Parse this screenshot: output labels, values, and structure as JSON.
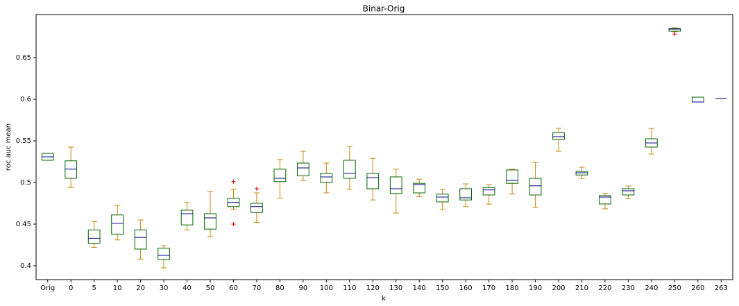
{
  "chart_data": {
    "type": "box",
    "title": "Binar-Orig",
    "x_label": "k",
    "y_label": "roc auc mean",
    "categories": [
      "Orig",
      "0",
      "5",
      "10",
      "20",
      "30",
      "40",
      "50",
      "60",
      "70",
      "80",
      "90",
      "100",
      "110",
      "120",
      "130",
      "140",
      "150",
      "160",
      "170",
      "180",
      "190",
      "200",
      "210",
      "220",
      "230",
      "240",
      "250",
      "260",
      "263"
    ],
    "boxes": [
      {
        "low": 0.5267,
        "q1": 0.5267,
        "median": 0.5308,
        "q3": 0.535,
        "high": 0.535
      },
      {
        "low": 0.494,
        "q1": 0.505,
        "median": 0.516,
        "q3": 0.526,
        "high": 0.5425
      },
      {
        "low": 0.422,
        "q1": 0.427,
        "median": 0.433,
        "q3": 0.443,
        "high": 0.453
      },
      {
        "low": 0.431,
        "q1": 0.438,
        "median": 0.451,
        "q3": 0.461,
        "high": 0.4725
      },
      {
        "low": 0.408,
        "q1": 0.42,
        "median": 0.434,
        "q3": 0.443,
        "high": 0.455
      },
      {
        "low": 0.3975,
        "q1": 0.4075,
        "median": 0.4125,
        "q3": 0.421,
        "high": 0.424
      },
      {
        "low": 0.443,
        "q1": 0.449,
        "median": 0.4625,
        "q3": 0.4667,
        "high": 0.476
      },
      {
        "low": 0.435,
        "q1": 0.444,
        "median": 0.4575,
        "q3": 0.4625,
        "high": 0.489
      },
      {
        "low": 0.468,
        "q1": 0.471,
        "median": 0.476,
        "q3": 0.481,
        "high": 0.492,
        "outliers": [
          0.501,
          0.45
        ]
      },
      {
        "low": 0.452,
        "q1": 0.464,
        "median": 0.471,
        "q3": 0.475,
        "high": 0.4875,
        "outliers": [
          0.4925
        ]
      },
      {
        "low": 0.481,
        "q1": 0.501,
        "median": 0.505,
        "q3": 0.516,
        "high": 0.5275
      },
      {
        "low": 0.5025,
        "q1": 0.508,
        "median": 0.5175,
        "q3": 0.5233,
        "high": 0.5375
      },
      {
        "low": 0.4875,
        "q1": 0.5,
        "median": 0.5067,
        "q3": 0.511,
        "high": 0.5233
      },
      {
        "low": 0.4917,
        "q1": 0.505,
        "median": 0.511,
        "q3": 0.5267,
        "high": 0.5433
      },
      {
        "low": 0.479,
        "q1": 0.4925,
        "median": 0.5058,
        "q3": 0.511,
        "high": 0.529
      },
      {
        "low": 0.4633,
        "q1": 0.4867,
        "median": 0.4925,
        "q3": 0.5067,
        "high": 0.516
      },
      {
        "low": 0.483,
        "q1": 0.4875,
        "median": 0.4975,
        "q3": 0.499,
        "high": 0.504
      },
      {
        "low": 0.4675,
        "q1": 0.4767,
        "median": 0.4825,
        "q3": 0.486,
        "high": 0.4917
      },
      {
        "low": 0.471,
        "q1": 0.479,
        "median": 0.4817,
        "q3": 0.4925,
        "high": 0.4983
      },
      {
        "low": 0.474,
        "q1": 0.485,
        "median": 0.491,
        "q3": 0.494,
        "high": 0.4975
      },
      {
        "low": 0.486,
        "q1": 0.499,
        "median": 0.5025,
        "q3": 0.515,
        "high": 0.516
      },
      {
        "low": 0.47,
        "q1": 0.485,
        "median": 0.496,
        "q3": 0.505,
        "high": 0.5242
      },
      {
        "low": 0.5375,
        "q1": 0.5517,
        "median": 0.555,
        "q3": 0.56,
        "high": 0.565
      },
      {
        "low": 0.505,
        "q1": 0.509,
        "median": 0.5117,
        "q3": 0.5133,
        "high": 0.5183
      },
      {
        "low": 0.4683,
        "q1": 0.4742,
        "median": 0.4825,
        "q3": 0.4842,
        "high": 0.4867
      },
      {
        "low": 0.481,
        "q1": 0.485,
        "median": 0.49,
        "q3": 0.4925,
        "high": 0.4958
      },
      {
        "low": 0.5342,
        "q1": 0.5425,
        "median": 0.5475,
        "q3": 0.5525,
        "high": 0.565
      },
      {
        "low": 0.681,
        "q1": 0.6817,
        "median": 0.6842,
        "q3": 0.685,
        "high": 0.6858,
        "outliers": [
          0.6783
        ]
      },
      {
        "low": 0.5967,
        "q1": 0.5967,
        "median": 0.5967,
        "q3": 0.6025,
        "high": 0.6025
      },
      {
        "low": 0.6008,
        "q1": 0.6008,
        "median": 0.6008,
        "q3": 0.6008,
        "high": 0.6008
      }
    ],
    "ylim": [
      0.3833,
      0.7017
    ],
    "yticks": [
      0.4,
      0.45,
      0.5,
      0.55,
      0.6,
      0.65
    ],
    "box_color": "#006400",
    "whisker_color": "#c8860a",
    "median_color": "#00008b",
    "outlier_color": "#e00000"
  }
}
